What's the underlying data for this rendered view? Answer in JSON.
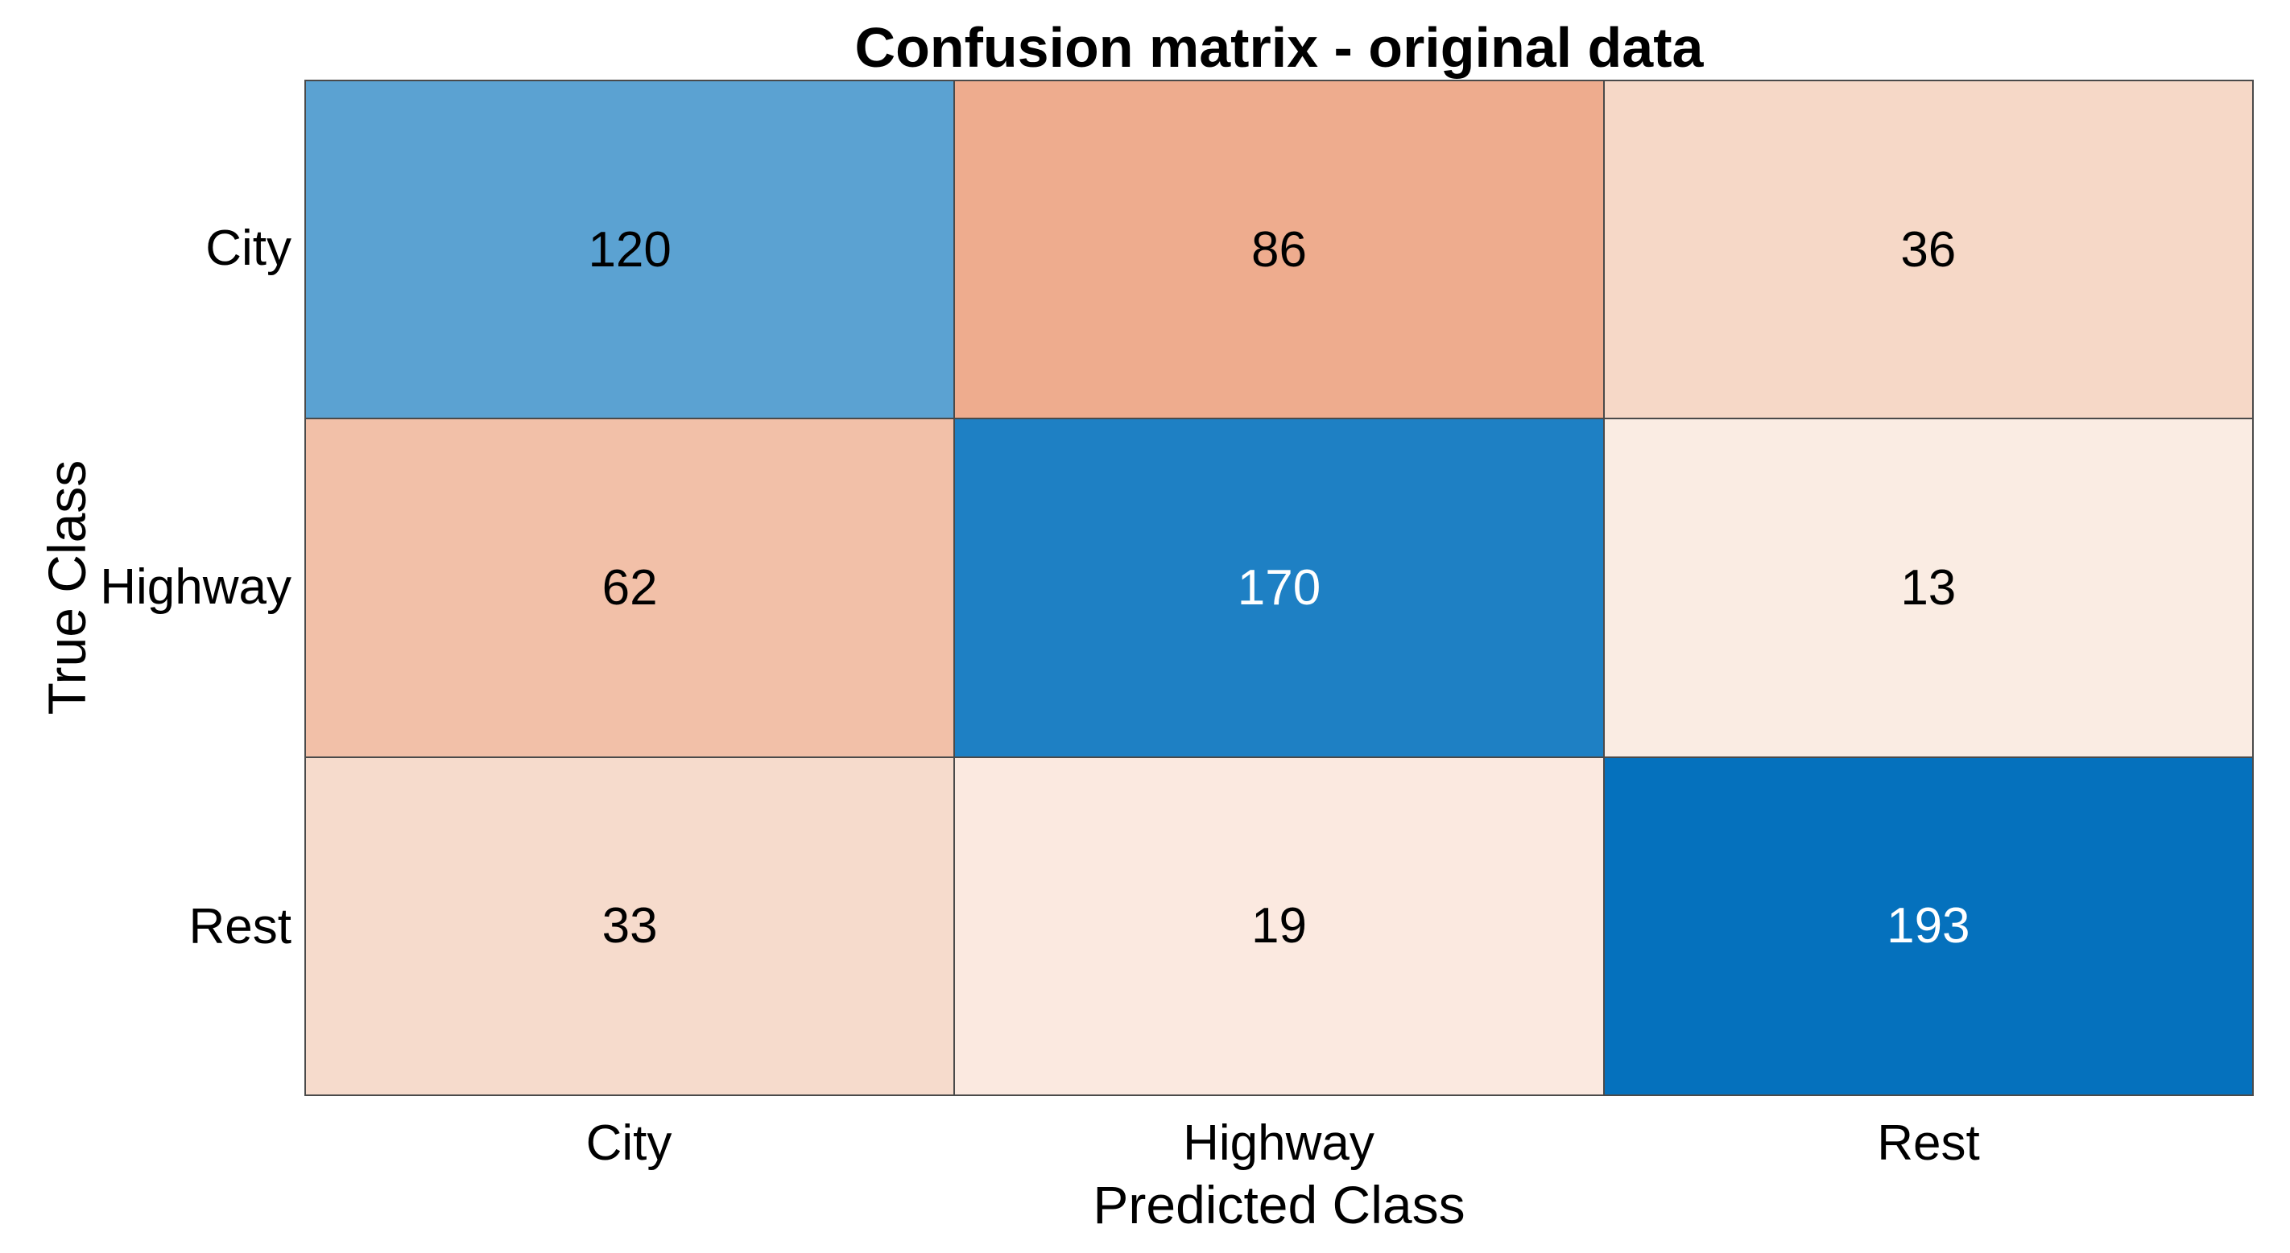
{
  "figure": {
    "title": "Confusion matrix - original data",
    "xlabel": "Predicted Class",
    "ylabel": "True Class"
  },
  "chart_data": {
    "type": "heatmap",
    "subtype": "confusion-matrix",
    "title": "Confusion matrix - original data",
    "xlabel": "Predicted Class",
    "ylabel": "True Class",
    "x_categories": [
      "City",
      "Highway",
      "Rest"
    ],
    "y_categories": [
      "City",
      "Highway",
      "Rest"
    ],
    "matrix": [
      [
        120,
        86,
        36
      ],
      [
        62,
        170,
        13
      ],
      [
        33,
        19,
        193
      ]
    ],
    "cell_colors": [
      [
        "#5BA2D2",
        "#EEAC8E",
        "#F6D8C7"
      ],
      [
        "#F2C0A8",
        "#1E80C4",
        "#FAECE3"
      ],
      [
        "#F6DBCC",
        "#FBE9E0",
        "#0571BD"
      ]
    ],
    "cell_text_colors": [
      [
        "#000000",
        "#000000",
        "#000000"
      ],
      [
        "#000000",
        "#FFFFFF",
        "#000000"
      ],
      [
        "#000000",
        "#000000",
        "#FFFFFF"
      ]
    ],
    "grid_line_color": "#4A4A4A",
    "background": "#FFFFFF",
    "legend": "none",
    "colorbar": "none"
  }
}
